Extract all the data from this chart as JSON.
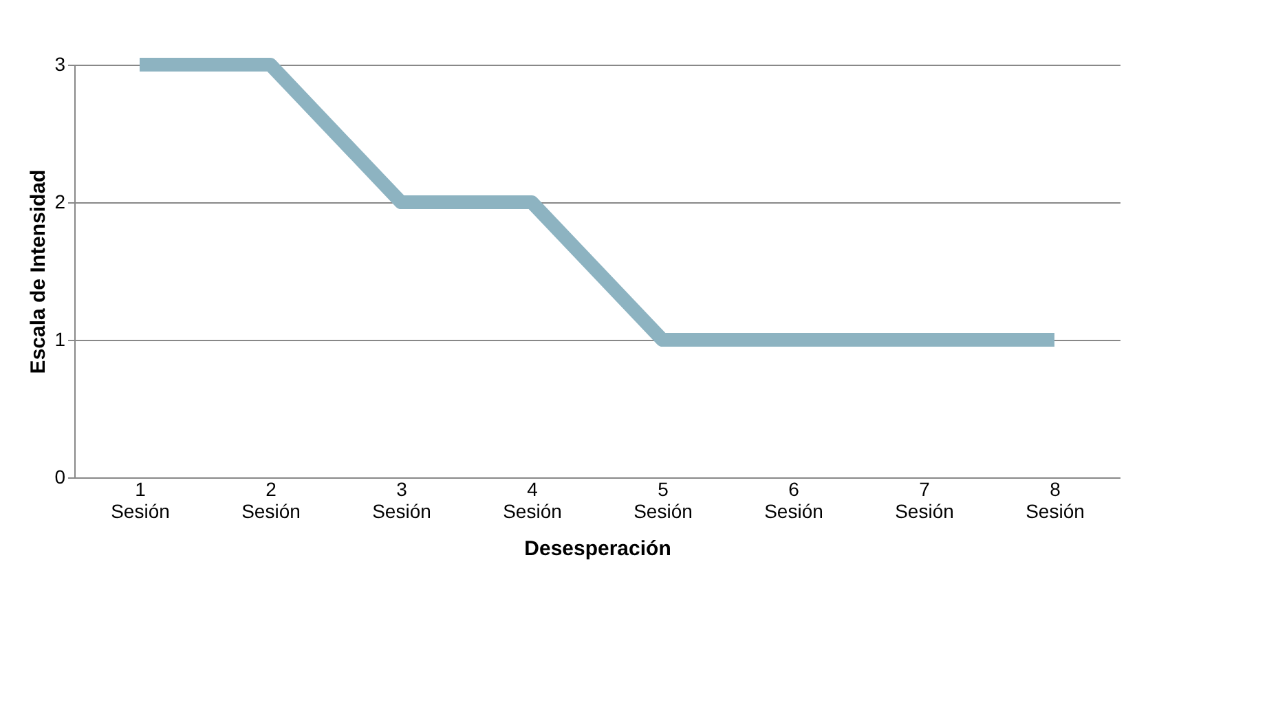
{
  "chart_data": {
    "type": "line",
    "xlabel": "Desesperación",
    "ylabel": "Escala de Intensidad",
    "categories": [
      "1 Sesión",
      "2 Sesión",
      "3 Sesión",
      "4 Sesión",
      "5 Sesión",
      "6 Sesión",
      "7 Sesión",
      "8 Sesión"
    ],
    "series": [
      {
        "color": "#8db3c1",
        "values": [
          3,
          3,
          2,
          2,
          1,
          1,
          1,
          1
        ]
      }
    ],
    "ylim": [
      0,
      3
    ],
    "yticks": [
      0,
      1,
      2,
      3
    ],
    "grid": "y",
    "marker": "none",
    "line_style": "solid"
  }
}
